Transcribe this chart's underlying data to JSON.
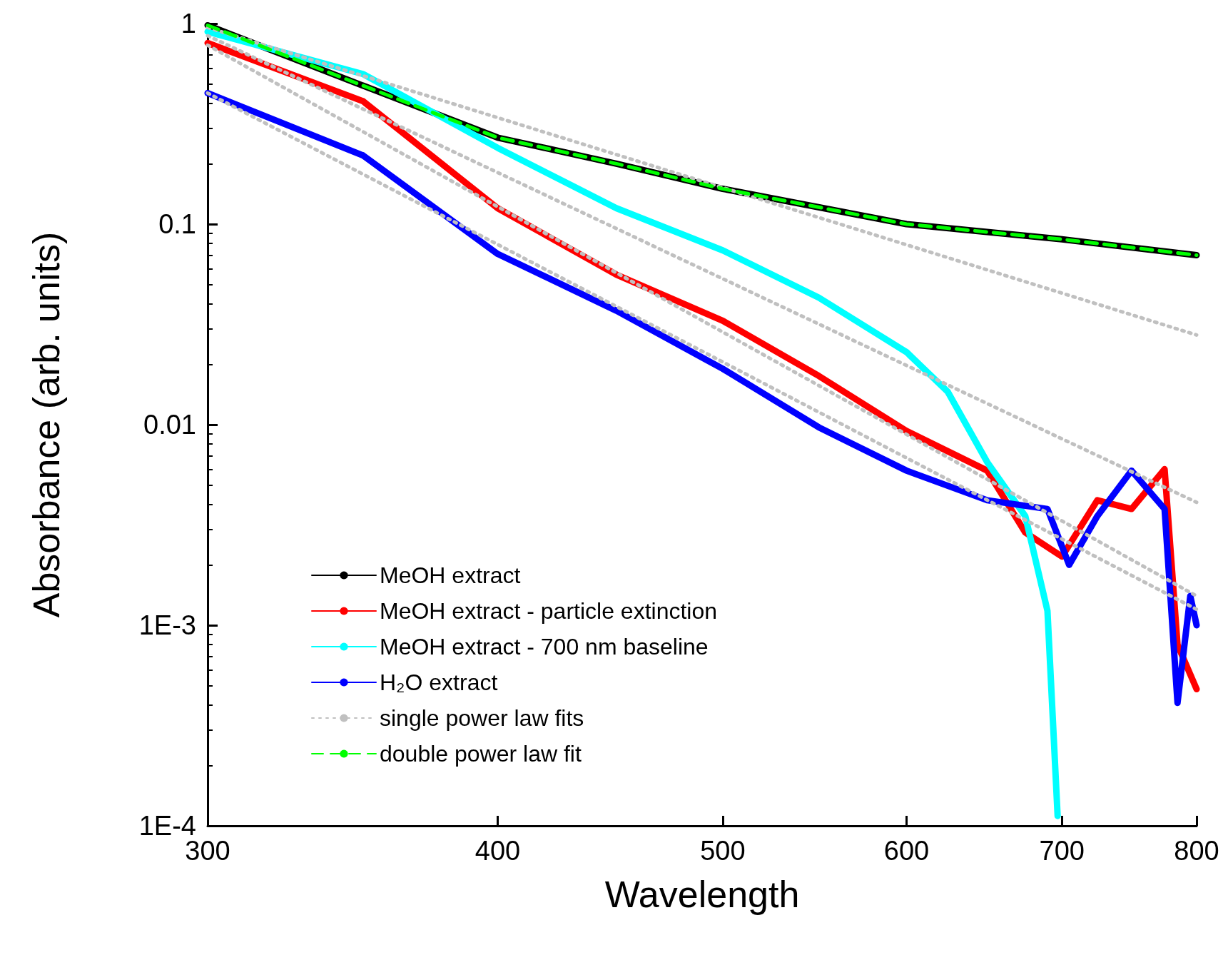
{
  "chart_data": {
    "type": "line",
    "xlabel": "Wavelength",
    "ylabel": "Absorbance (arb. units)",
    "log": "xy",
    "xlim": [
      300,
      800
    ],
    "ylim": [
      0.0001,
      1
    ],
    "xticks": [
      300,
      400,
      500,
      600,
      700,
      800
    ],
    "yticks": [
      {
        "value": 0.0001,
        "label": "1E-4"
      },
      {
        "value": 0.001,
        "label": "1E-3"
      },
      0.01,
      0.1,
      1
    ],
    "grid": false,
    "legend": "bottom left",
    "marker": "none",
    "series": [
      {
        "name": "MeOH extract",
        "color": "#000000",
        "line_style": "solid",
        "x": [
          300,
          350,
          400,
          450,
          500,
          600,
          700,
          800
        ],
        "values": [
          0.98,
          0.49,
          0.27,
          0.2,
          0.15,
          0.1,
          0.084,
          0.07
        ]
      },
      {
        "name": "MeOH extract - particle extinction",
        "color": "#ff0000",
        "line_style": "solid",
        "x": [
          300,
          350,
          400,
          450,
          500,
          550,
          600,
          650,
          675,
          700,
          725,
          750,
          775,
          785,
          800
        ],
        "values": [
          0.8,
          0.41,
          0.12,
          0.056,
          0.033,
          0.0175,
          0.0093,
          0.0059,
          0.0029,
          0.0022,
          0.0042,
          0.0038,
          0.006,
          0.0008,
          0.00048
        ]
      },
      {
        "name": "MeOH extract - 700 nm baseline",
        "color": "#00ffff",
        "line_style": "solid",
        "x": [
          300,
          350,
          400,
          450,
          500,
          550,
          600,
          625,
          650,
          675,
          690,
          697
        ],
        "values": [
          0.91,
          0.56,
          0.24,
          0.12,
          0.074,
          0.043,
          0.023,
          0.0146,
          0.0065,
          0.0035,
          0.00118,
          0.000112
        ]
      },
      {
        "name": "H₂O extract",
        "color": "#0000ff",
        "line_style": "solid",
        "x": [
          300,
          350,
          400,
          450,
          500,
          550,
          600,
          650,
          690,
          705,
          725,
          750,
          775,
          785,
          795,
          800
        ],
        "values": [
          0.45,
          0.22,
          0.071,
          0.037,
          0.019,
          0.0097,
          0.0059,
          0.0042,
          0.0038,
          0.002,
          0.0035,
          0.0059,
          0.0038,
          0.00041,
          0.0014,
          0.001
        ]
      },
      {
        "name": "single power law fits",
        "color": "#c0c0c0",
        "line_style": "dotted",
        "x": [
          300,
          800
        ],
        "values": [
          0.956,
          0.028
        ]
      },
      {
        "color": "#c0c0c0",
        "line_style": "dotted",
        "x": [
          300,
          800
        ],
        "values": [
          0.87,
          0.0041
        ]
      },
      {
        "color": "#c0c0c0",
        "line_style": "dotted",
        "x": [
          300,
          800
        ],
        "values": [
          0.78,
          0.0014
        ]
      },
      {
        "color": "#c0c0c0",
        "line_style": "dotted",
        "x": [
          300,
          800
        ],
        "values": [
          0.45,
          0.0012
        ]
      },
      {
        "name": "double power law fit",
        "color": "#00ff00",
        "line_style": "dashed",
        "x": [
          300,
          350,
          400,
          450,
          500,
          600,
          700,
          800
        ],
        "values": [
          0.98,
          0.49,
          0.27,
          0.2,
          0.15,
          0.1,
          0.084,
          0.07
        ]
      }
    ]
  }
}
